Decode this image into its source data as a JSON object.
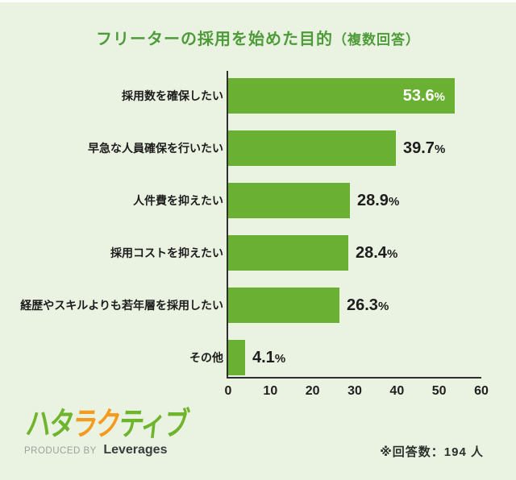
{
  "title": {
    "main": "フリーターの採用を始めた目的",
    "sub": "（複数回答）"
  },
  "chart_data": {
    "type": "bar",
    "orientation": "horizontal",
    "title": "フリーターの採用を始めた目的（複数回答）",
    "categories": [
      "採用数を確保したい",
      "早急な人員確保を行いたい",
      "人件費を抑えたい",
      "採用コストを抑えたい",
      "経歴やスキルよりも若年層を採用したい",
      "その他"
    ],
    "values": [
      53.6,
      39.7,
      28.9,
      28.4,
      26.3,
      4.1
    ],
    "value_labels": [
      "53.6",
      "39.7",
      "28.9",
      "28.4",
      "26.3",
      "4.1"
    ],
    "value_suffix": "%",
    "xlim": [
      0,
      60
    ],
    "x_ticks": [
      "0",
      "10",
      "20",
      "30",
      "40",
      "50",
      "60"
    ],
    "grid": false,
    "legend": "none",
    "bar_color": "#6AB033"
  },
  "footer": {
    "logo_text": "ハタラクティブ",
    "logo_chars": [
      {
        "ch": "ハ",
        "color": "#6FB42D"
      },
      {
        "ch": "タ",
        "color": "#6FB42D"
      },
      {
        "ch": "ラ",
        "color": "#F49A1E"
      },
      {
        "ch": "ク",
        "color": "#F49A1E"
      },
      {
        "ch": "テ",
        "color": "#6FB42D"
      },
      {
        "ch": "ィ",
        "color": "#6FB42D"
      },
      {
        "ch": "ブ",
        "color": "#6FB42D"
      }
    ],
    "produced_by": "PRODUCED BY",
    "company": "Leverages",
    "note": "※回答数：194 人"
  },
  "colors": {
    "background": "#EAF2E2",
    "title": "#4E9B3A",
    "bar": "#6AB033",
    "axis": "#2F2F2F",
    "value_inside": "#FFFFFF",
    "value_outside": "#1E1E1E"
  }
}
